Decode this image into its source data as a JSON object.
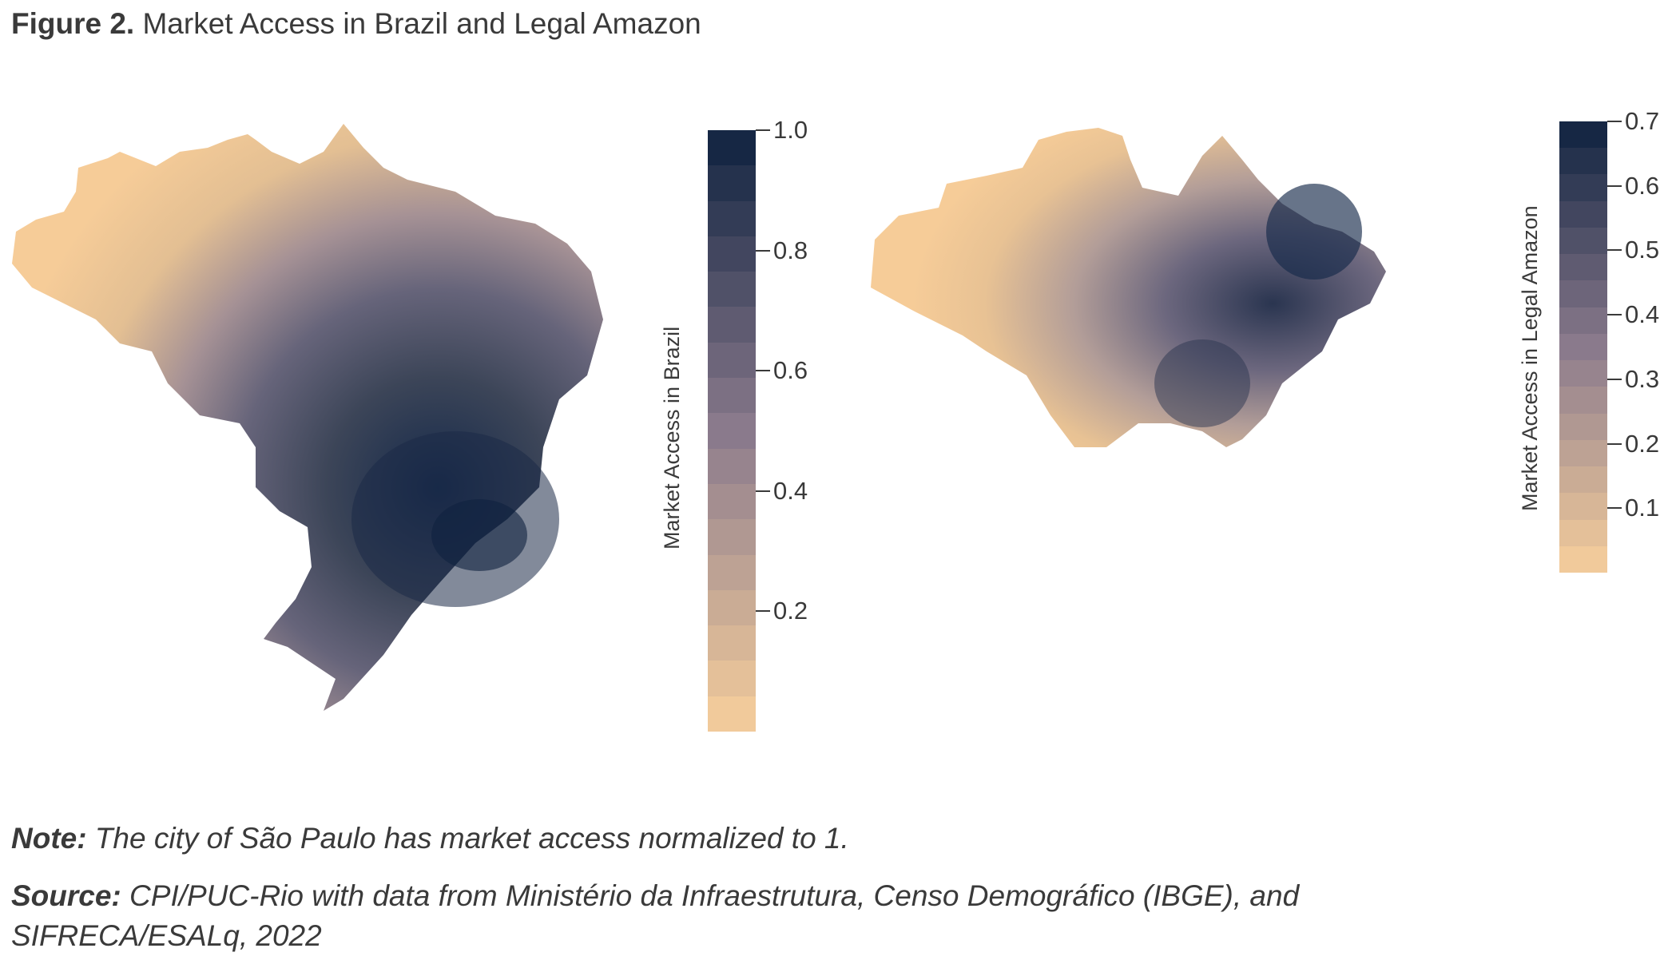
{
  "figure": {
    "label": "Figure 2.",
    "title": "Market Access in Brazil and Legal Amazon"
  },
  "maps": [
    {
      "id": "brazil",
      "colorbar": {
        "label": "Market Access in Brazil",
        "min": 0,
        "max": 1.0,
        "ticks": [
          "1.0",
          "0.8",
          "0.6",
          "0.4",
          "0.2"
        ],
        "tick_values": [
          1.0,
          0.8,
          0.6,
          0.4,
          0.2
        ],
        "steps": 17
      }
    },
    {
      "id": "legal-amazon",
      "colorbar": {
        "label": "Market Access in Legal Amazon",
        "min": 0,
        "max": 0.7,
        "ticks": [
          "0.7",
          "0.6",
          "0.5",
          "0.4",
          "0.3",
          "0.2",
          "0.1"
        ],
        "tick_values": [
          0.7,
          0.6,
          0.5,
          0.4,
          0.3,
          0.2,
          0.1
        ],
        "steps": 17
      }
    }
  ],
  "colors": {
    "low": "#f7cf9c",
    "mid": "#8a7a8c",
    "high": "#0f2240"
  },
  "note": {
    "label": "Note:",
    "text": "The city of São Paulo has market access normalized to 1."
  },
  "source": {
    "label": "Source:",
    "text": "CPI/PUC-Rio with data from Ministério da Infraestrutura, Censo Demográfico (IBGE), and SIFRECA/ESALq, 2022"
  }
}
